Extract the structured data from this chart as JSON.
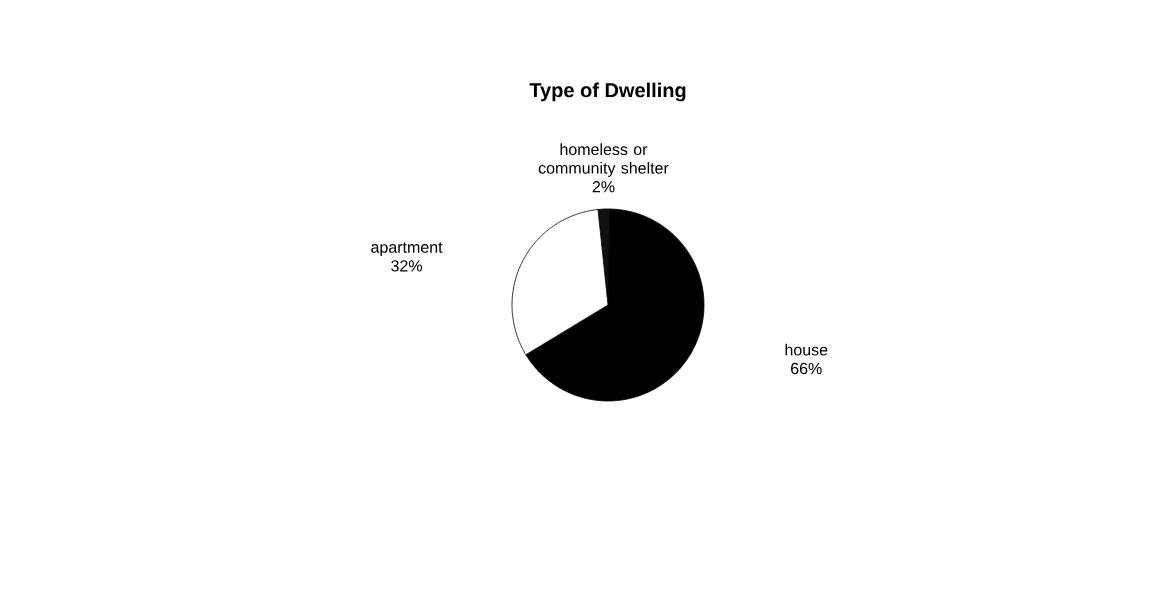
{
  "chart_data": {
    "type": "pie",
    "title": "Type of Dwelling",
    "categories": [
      "homeless or community shelter",
      "house",
      "apartment"
    ],
    "values": [
      2,
      66,
      32
    ],
    "value_labels": [
      "2%",
      "66%",
      "32%"
    ],
    "colors": [
      "#111111",
      "#000000",
      "#ffffff"
    ]
  }
}
